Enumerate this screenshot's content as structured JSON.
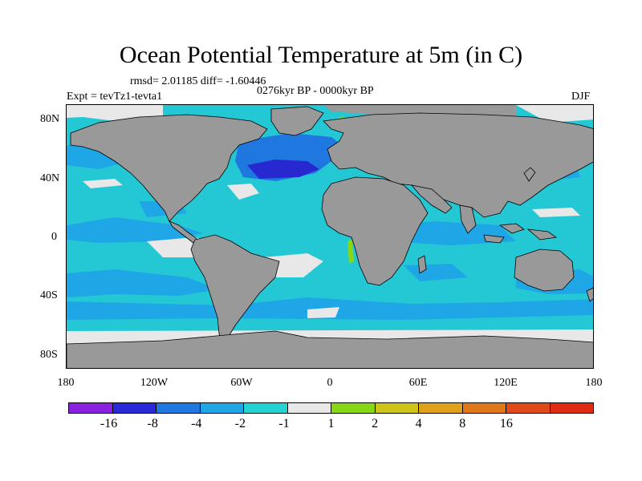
{
  "title": "Ocean Potential Temperature at 5m (in C)",
  "stats_line": "rmsd= 2.01185 diff= -1.60446",
  "period": "0276kyr BP - 0000kyr BP",
  "experiment": "Expt = tevTz1-tevta1",
  "season": "DJF",
  "y_axis": {
    "ticks": [
      "80N",
      "40N",
      "0",
      "40S",
      "80S"
    ]
  },
  "x_axis": {
    "ticks": [
      "180",
      "120W",
      "60W",
      "0",
      "60E",
      "120E",
      "180"
    ]
  },
  "colors": {
    "land": "#999999",
    "ocean_base": "#24c8d4",
    "neg2": "#1ea6e6",
    "neg4": "#1e78e0",
    "neg8": "#2828d0",
    "neutral": "#e8e8e8"
  },
  "legend": {
    "colors": [
      "#8a22e0",
      "#2a2ad8",
      "#1e78e0",
      "#1ea6e6",
      "#24d2d2",
      "#e8e8e8",
      "#86d817",
      "#cfc51a",
      "#e0a21a",
      "#e0781a",
      "#e04a18",
      "#e02a14"
    ],
    "labels": [
      "-16",
      "-8",
      "-4",
      "-2",
      "-1",
      "1",
      "2",
      "4",
      "8",
      "16"
    ]
  }
}
